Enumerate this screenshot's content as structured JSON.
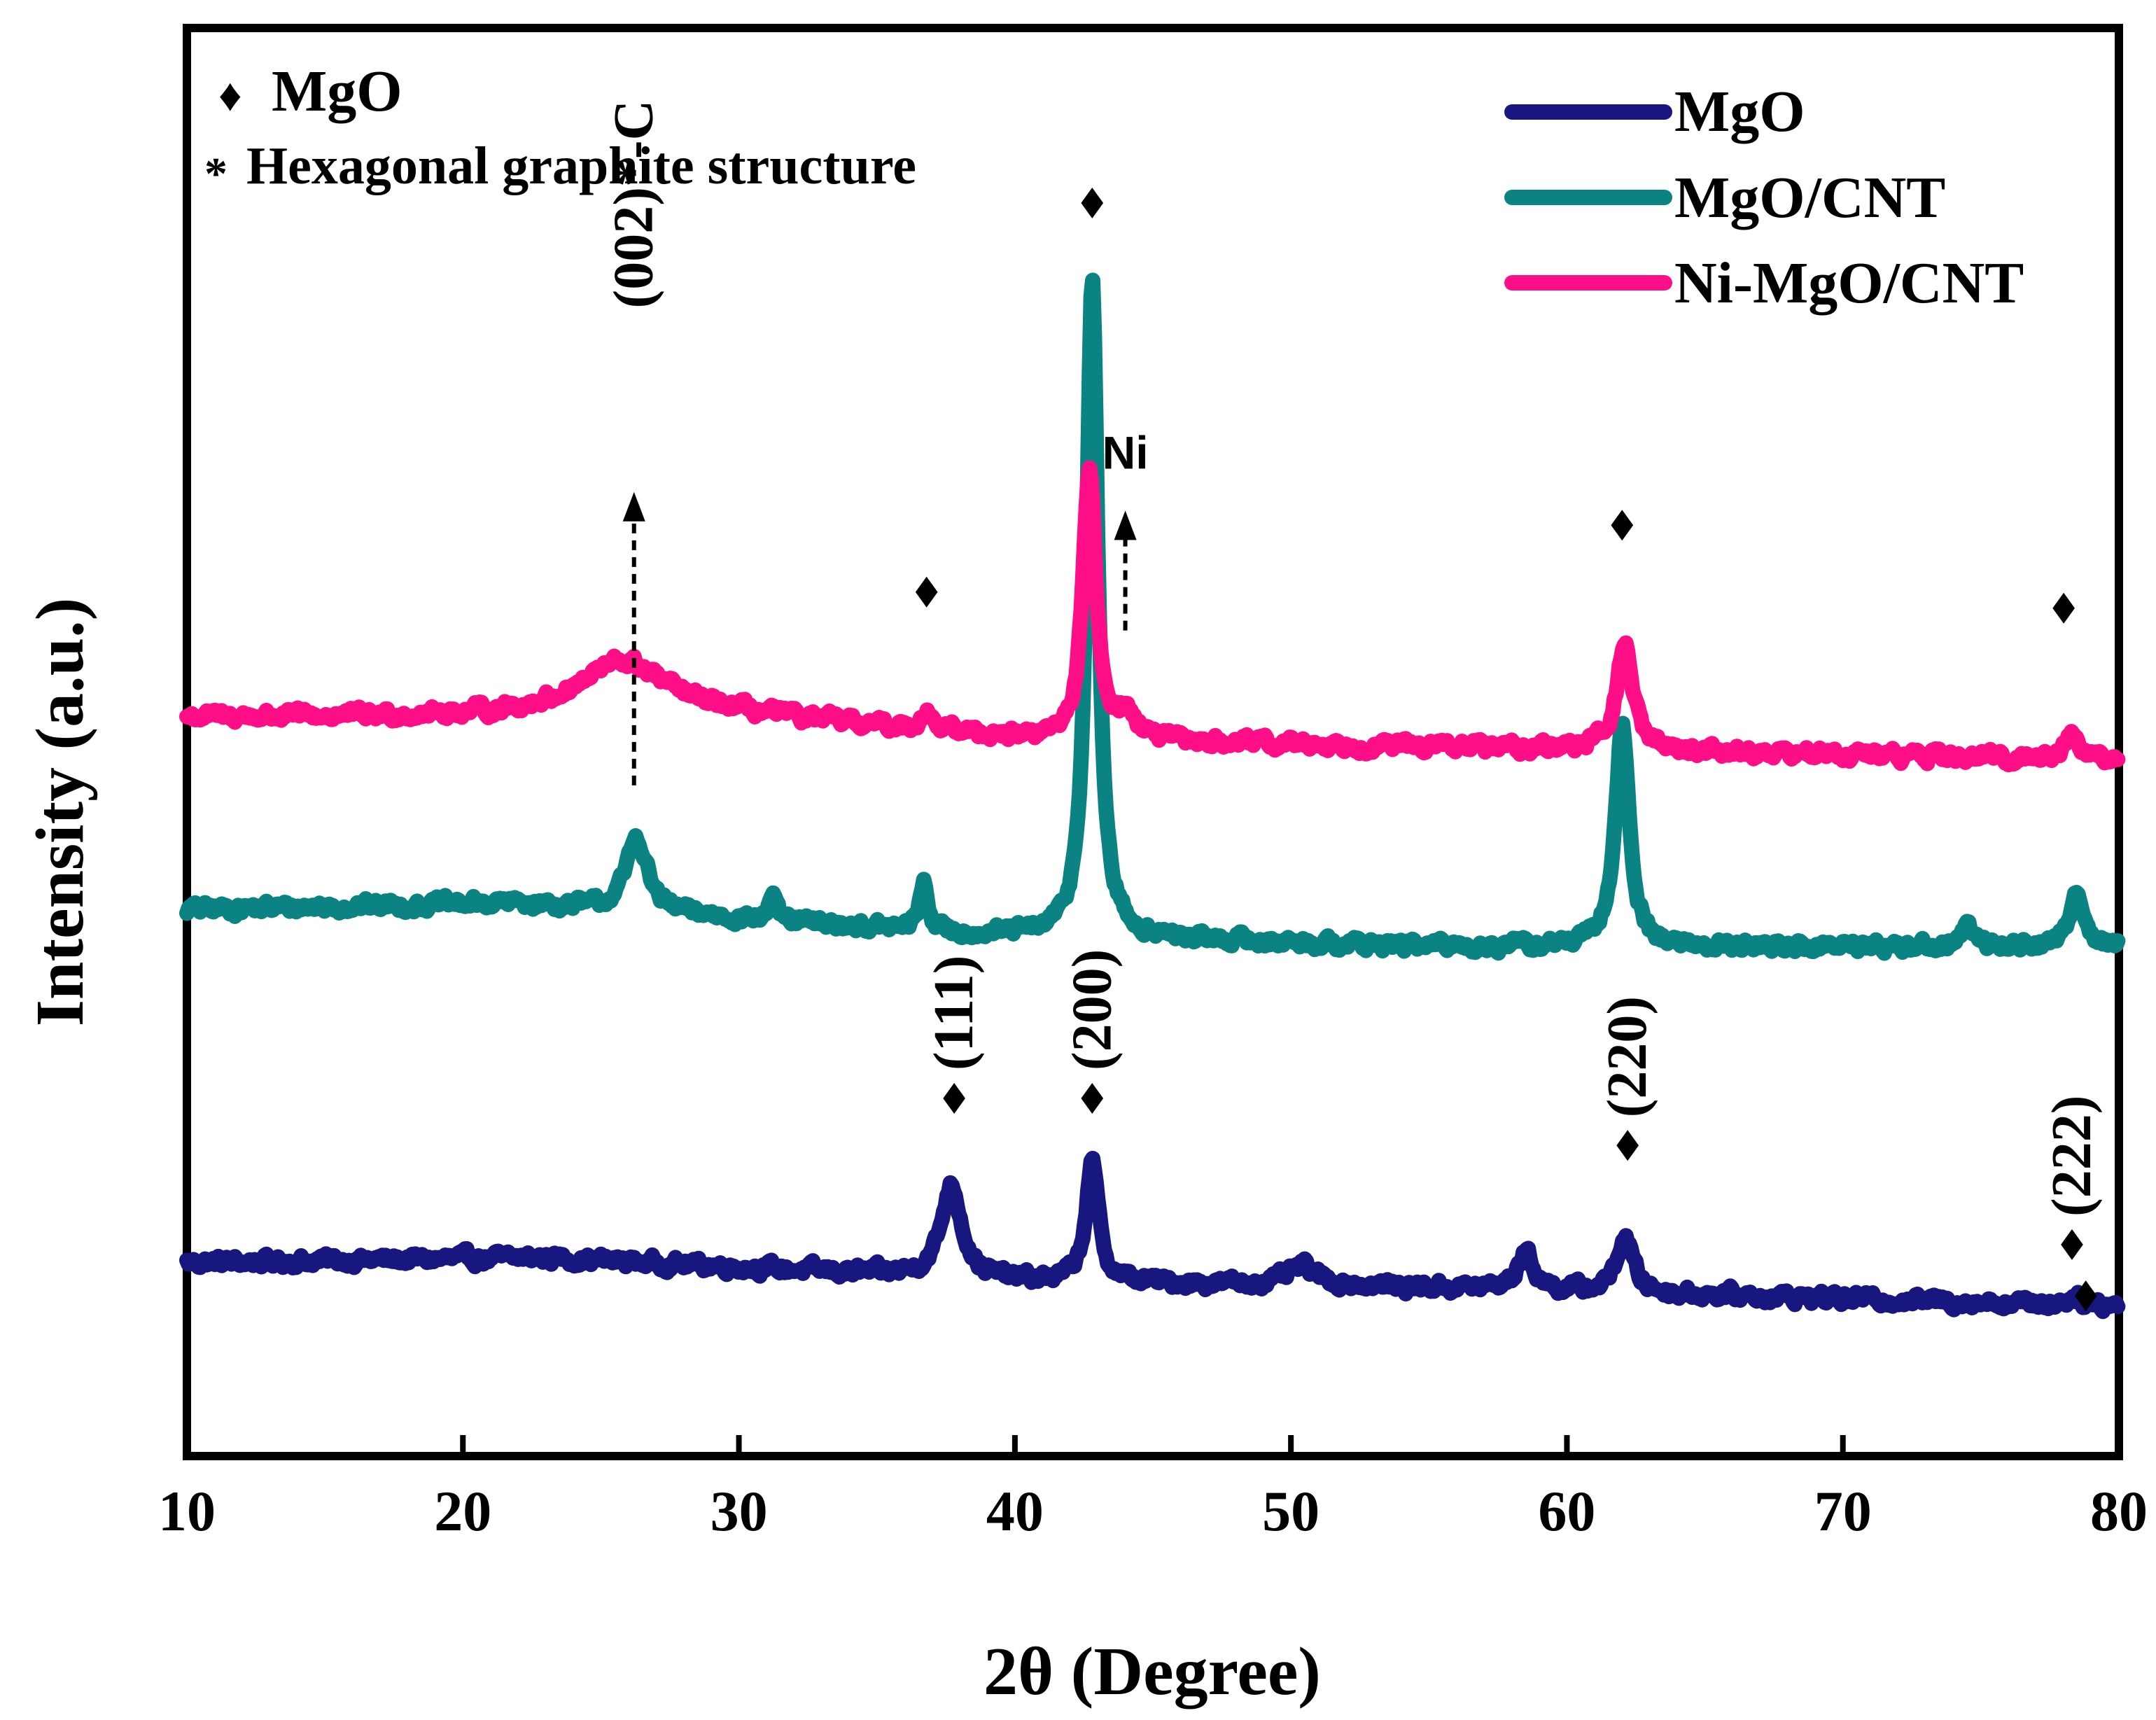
{
  "chart_data": {
    "type": "line",
    "title": "",
    "xlabel": "2θ (Degree)",
    "ylabel": "Intensity (a.u.)",
    "xlim": [
      10,
      80
    ],
    "ylim": [
      0,
      1
    ],
    "x_ticks": [
      10,
      20,
      30,
      40,
      50,
      60,
      70,
      80
    ],
    "y_ticks": [],
    "grid": false,
    "legend_position": "top-right",
    "series": [
      {
        "name": "MgO",
        "color": "#17177f",
        "baseline": 0.145,
        "trend": [
          [
            10,
            0.0
          ],
          [
            23,
            0.004
          ],
          [
            40,
            -0.015
          ],
          [
            55,
            -0.02
          ],
          [
            80,
            -0.035
          ]
        ],
        "noise": 0.009,
        "peaks": [
          {
            "x": 37.7,
            "height": 0.075,
            "width": 0.45
          },
          {
            "x": 42.8,
            "height": 0.095,
            "width": 0.28
          },
          {
            "x": 50.4,
            "height": 0.015,
            "width": 0.6
          },
          {
            "x": 58.5,
            "height": 0.03,
            "width": 0.35
          },
          {
            "x": 62.1,
            "height": 0.045,
            "width": 0.35
          },
          {
            "x": 78.4,
            "height": 0.006,
            "width": 0.4
          }
        ]
      },
      {
        "name": "MgO/CNT",
        "color": "#0b8382",
        "baseline": 0.43,
        "trend": [
          [
            10,
            0.0
          ],
          [
            22,
            0.005
          ],
          [
            38,
            -0.02
          ],
          [
            55,
            -0.03
          ],
          [
            80,
            -0.03
          ]
        ],
        "noise": 0.009,
        "peaks": [
          {
            "x": 26.3,
            "height": 0.06,
            "width": 0.45
          },
          {
            "x": 31.2,
            "height": 0.02,
            "width": 0.15
          },
          {
            "x": 36.7,
            "height": 0.04,
            "width": 0.18
          },
          {
            "x": 42.8,
            "height": 0.53,
            "width": 0.25
          },
          {
            "x": 62.0,
            "height": 0.18,
            "width": 0.3
          },
          {
            "x": 74.5,
            "height": 0.015,
            "width": 0.3
          },
          {
            "x": 78.5,
            "height": 0.045,
            "width": 0.3
          }
        ]
      },
      {
        "name": "Ni-MgO/CNT",
        "color": "#ff0f87",
        "baseline": 0.585,
        "trend": [
          [
            10,
            0.0
          ],
          [
            30,
            0.0
          ],
          [
            42,
            -0.02
          ],
          [
            60,
            -0.025
          ],
          [
            80,
            -0.035
          ]
        ],
        "noise": 0.009,
        "peaks": [
          {
            "x": 25.8,
            "height": 0.045,
            "width": 2.0
          },
          {
            "x": 36.8,
            "height": 0.015,
            "width": 0.25
          },
          {
            "x": 42.7,
            "height": 0.22,
            "width": 0.28
          },
          {
            "x": 44.0,
            "height": 0.02,
            "width": 0.5
          },
          {
            "x": 62.1,
            "height": 0.085,
            "width": 0.35
          },
          {
            "x": 78.3,
            "height": 0.02,
            "width": 0.35
          }
        ]
      }
    ],
    "annotations": [
      {
        "text": "(111)",
        "x": 37.8,
        "y": 0.3,
        "rotate": true,
        "diamond": true
      },
      {
        "text": "(200)",
        "x": 42.8,
        "y": 0.3,
        "rotate": true,
        "diamond": true
      },
      {
        "text": "(220)",
        "x": 62.2,
        "y": 0.262,
        "rotate": true,
        "diamond": true
      },
      {
        "text": "(222)",
        "x": 78.3,
        "y": 0.182,
        "rotate": true,
        "diamond": true
      },
      {
        "text": "(002)*-C",
        "x": 26.2,
        "y": 0.915,
        "rotate": true,
        "diamond": false
      }
    ],
    "marker_points": [
      {
        "x": 42.8,
        "y": 1.0
      },
      {
        "x": 36.8,
        "y": 0.686
      },
      {
        "x": 62.0,
        "y": 0.74
      },
      {
        "x": 78.0,
        "y": 0.673
      },
      {
        "x": 78.8,
        "y": 0.118
      }
    ],
    "ni_label": {
      "text": "Ni",
      "x": 44.0,
      "y": 0.78
    },
    "arrows": [
      {
        "x": 26.2,
        "from": 0.53,
        "to": 0.76
      },
      {
        "x": 44.0,
        "from": 0.655,
        "to": 0.745
      }
    ],
    "key": {
      "diamond_label": "MgO",
      "star_label": "Hexagonal graphite structure",
      "diamond_symbol": "♦",
      "star_symbol": "*"
    }
  }
}
